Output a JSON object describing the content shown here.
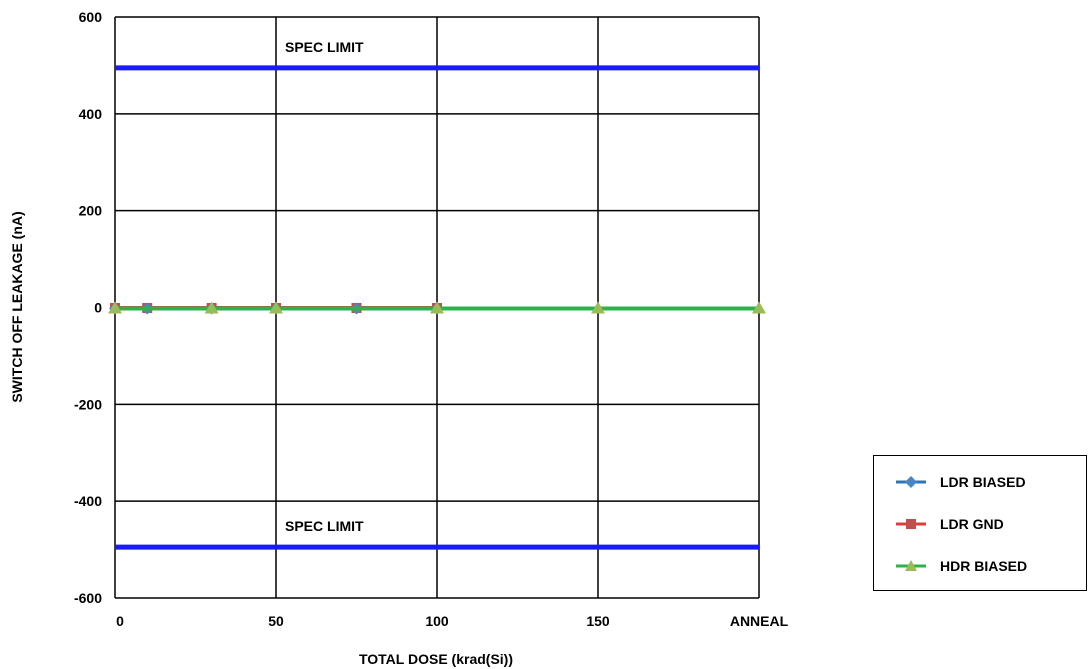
{
  "chart_data": {
    "type": "line",
    "categories": [
      "0",
      "10",
      "30",
      "50",
      "75",
      "100",
      "150",
      "ANNEAL"
    ],
    "x": [
      0,
      10,
      30,
      50,
      75,
      100,
      150,
      200
    ],
    "xticks": [
      0,
      50,
      100,
      150,
      200
    ],
    "xtick_labels": [
      "0",
      "50",
      "100",
      "150",
      "ANNEAL"
    ],
    "xlim": [
      0,
      200
    ],
    "ylim": [
      -600,
      600
    ],
    "yticks": [
      600,
      400,
      200,
      0,
      -200,
      -400,
      -600
    ],
    "ytick_labels": [
      "600",
      "400",
      "200",
      "0",
      "-200",
      "-400",
      "-600"
    ],
    "xlabel": "TOTAL DOSE (krad(Si))",
    "ylabel": "SWITCH OFF LEAKAGE (nA)",
    "grid": true,
    "legend_position": "bottom-right",
    "reference_lines": [
      {
        "label": "SPEC LIMIT",
        "y": 495,
        "color": "#1a1aff"
      },
      {
        "label": "SPEC LIMIT",
        "y": -495,
        "color": "#1a1aff"
      }
    ],
    "series": [
      {
        "name": "LDR BIASED",
        "color": "#2e75b6",
        "marker": "diamond",
        "x": [
          0,
          10,
          30,
          50,
          75,
          100
        ],
        "y": [
          -2,
          -2,
          -2,
          -2,
          -2,
          -2
        ]
      },
      {
        "name": "LDR GND",
        "color": "#e03c3c",
        "marker": "square",
        "x": [
          0,
          10,
          30,
          50,
          75,
          100
        ],
        "y": [
          -1,
          -1,
          -1,
          -1,
          -1,
          -1
        ]
      },
      {
        "name": "HDR BIASED",
        "color": "#2db34a",
        "marker": "triangle",
        "marker_color": "#9bbb59",
        "x": [
          0,
          30,
          50,
          100,
          150,
          200
        ],
        "y": [
          -2,
          -2,
          -2,
          -2,
          -2,
          -2
        ]
      }
    ]
  }
}
